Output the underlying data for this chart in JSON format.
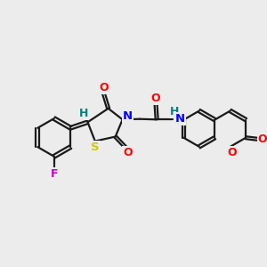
{
  "background_color": "#ececec",
  "bond_color": "#1a1a1a",
  "bond_width": 1.6,
  "dbo": 0.055,
  "figsize": [
    3.0,
    3.0
  ],
  "dpi": 100,
  "colors": {
    "F": "#cc00cc",
    "O": "#ff0000",
    "N": "#0000ff",
    "S": "#cccc00",
    "H": "#008080",
    "C": "#1a1a1a"
  }
}
